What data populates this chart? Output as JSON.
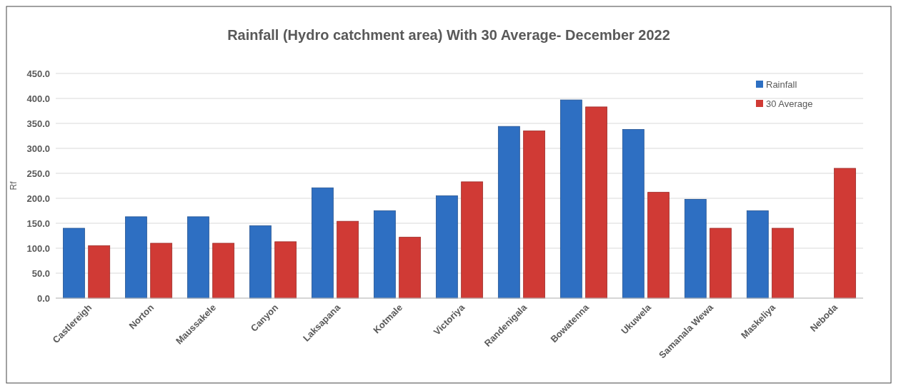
{
  "chart_data": {
    "type": "bar",
    "title": "Rainfall (Hydro catchment area) With 30 Average- December 2022",
    "ylabel": "Rf",
    "categories": [
      "Castlereigh",
      "Norton",
      "Maussakele",
      "Canyon",
      "Laksapana",
      "Kotmale",
      "Victoriya",
      "Randenigala",
      "Bowatenna",
      "Ukuwela",
      "Samanala Wewa",
      "Maskeliya",
      "Neboda"
    ],
    "series": [
      {
        "name": "Rainfall",
        "color": "#2e6fc2",
        "values": [
          140,
          163,
          163,
          145,
          221,
          175,
          205,
          344,
          397,
          338,
          198,
          175,
          null
        ]
      },
      {
        "name": "30 Average",
        "color": "#d03a35",
        "values": [
          105,
          110,
          110,
          113,
          154,
          122,
          233,
          335,
          383,
          212,
          140,
          140,
          260
        ]
      }
    ],
    "ylim": [
      0,
      450
    ],
    "yticks": [
      {
        "value": 0,
        "label": "0.0"
      },
      {
        "value": 50,
        "label": "50.0"
      },
      {
        "value": 100,
        "label": "100.0"
      },
      {
        "value": 150,
        "label": "150.0"
      },
      {
        "value": 200,
        "label": "200.0"
      },
      {
        "value": 250,
        "label": "250.0"
      },
      {
        "value": 300,
        "label": "300.0"
      },
      {
        "value": 350,
        "label": "350.0"
      },
      {
        "value": 400,
        "label": "400.0"
      },
      {
        "value": 450,
        "label": "450.0"
      }
    ],
    "grid": "y",
    "legend": "top right"
  }
}
